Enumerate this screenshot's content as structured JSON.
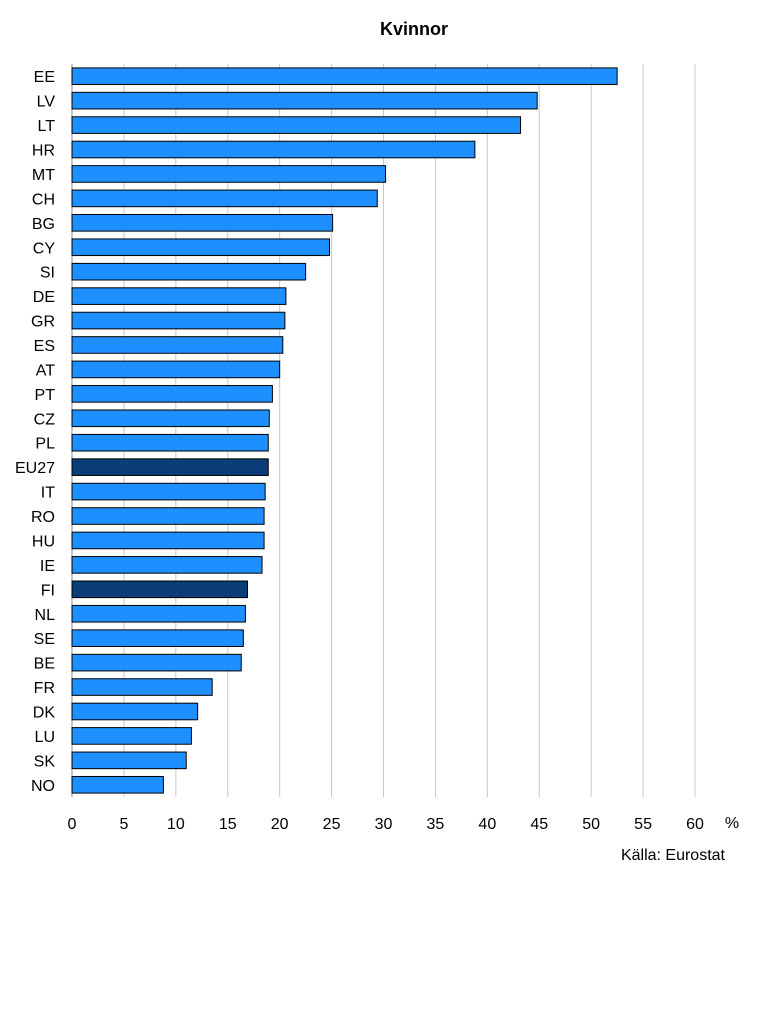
{
  "chart_data": {
    "type": "bar",
    "orientation": "horizontal",
    "title": "Kvinnor",
    "categories": [
      "EE",
      "LV",
      "LT",
      "HR",
      "MT",
      "CH",
      "BG",
      "CY",
      "SI",
      "DE",
      "GR",
      "ES",
      "AT",
      "PT",
      "CZ",
      "PL",
      "EU27",
      "IT",
      "RO",
      "HU",
      "IE",
      "FI",
      "NL",
      "SE",
      "BE",
      "FR",
      "DK",
      "LU",
      "SK",
      "NO"
    ],
    "values": [
      52.5,
      44.8,
      43.2,
      38.8,
      30.2,
      29.4,
      25.1,
      24.8,
      22.5,
      20.6,
      20.5,
      20.3,
      20.0,
      19.3,
      19.0,
      18.9,
      18.9,
      18.6,
      18.5,
      18.5,
      18.3,
      16.9,
      16.7,
      16.5,
      16.3,
      13.5,
      12.1,
      11.5,
      11.0,
      8.8
    ],
    "highlight": [
      "EU27",
      "FI"
    ],
    "xlim": [
      0,
      60
    ],
    "x_ticks": [
      0,
      5,
      10,
      15,
      20,
      25,
      30,
      35,
      40,
      45,
      50,
      55,
      60
    ],
    "x_unit": "%",
    "grid": true,
    "colors": {
      "bar": "#1e8fff",
      "highlight": "#0b3d78",
      "bar_border": "#000000"
    },
    "source": "Källa: Eurostat"
  }
}
